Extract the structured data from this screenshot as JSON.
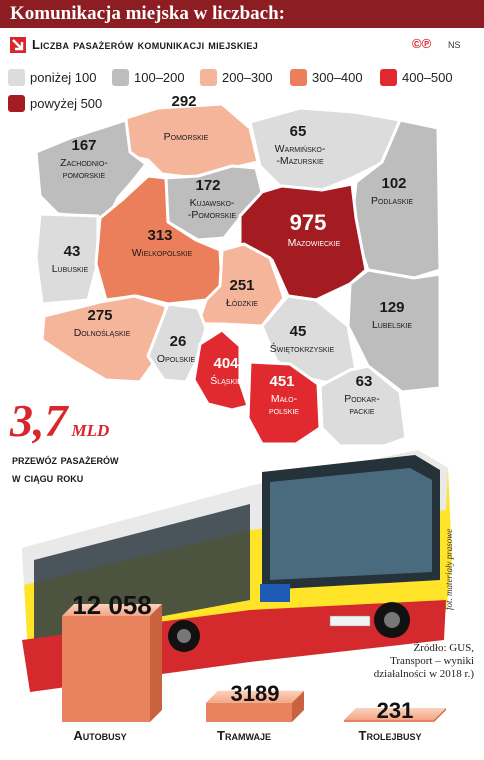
{
  "header": {
    "title": "Komunikacja miejska w liczbach:",
    "subtitle": "Liczba pasażerów komunikacji miejskiej",
    "copyright": "©℗",
    "author": "NS"
  },
  "colors": {
    "title_bg": "#8c1d22",
    "accent": "#d8262c",
    "bins": {
      "below_100": "#dcdcdc",
      "100_200": "#bdbdbd",
      "200_300": "#f5b59a",
      "300_400": "#ec7f5b",
      "400_500": "#e02a30",
      "above_500": "#a51b22"
    }
  },
  "legend": [
    {
      "label": "poniżej 100",
      "color": "#dcdcdc"
    },
    {
      "label": "100–200",
      "color": "#bdbdbd"
    },
    {
      "label": "200–300",
      "color": "#f5b59a"
    },
    {
      "label": "300–400",
      "color": "#ec7f5b"
    },
    {
      "label": "400–500",
      "color": "#e02a30"
    },
    {
      "label": "powyżej 500",
      "color": "#a51b22"
    }
  ],
  "chart_data": [
    {
      "type": "choropleth",
      "regions": [
        {
          "name": "Pomorskie",
          "value": 292
        },
        {
          "name": "Zachodnio-pomorskie",
          "value": 167
        },
        {
          "name": "Warmińsko--Mazurskie",
          "value": 65
        },
        {
          "name": "Kujawsko--Pomorskie",
          "value": 172
        },
        {
          "name": "Podlaskie",
          "value": 102
        },
        {
          "name": "Lubuskie",
          "value": 43
        },
        {
          "name": "Wielkopolskie",
          "value": 313
        },
        {
          "name": "Mazowieckie",
          "value": 975
        },
        {
          "name": "Łódzkie",
          "value": 251
        },
        {
          "name": "Lubelskie",
          "value": 129
        },
        {
          "name": "Dolnośląskie",
          "value": 275
        },
        {
          "name": "Opolskie",
          "value": 26
        },
        {
          "name": "Świętokrzyskie",
          "value": 45
        },
        {
          "name": "Śląskie",
          "value": 404
        },
        {
          "name": "Mało-polskie",
          "value": 451
        },
        {
          "name": "Podkar-packie",
          "value": 63
        }
      ]
    },
    {
      "type": "bar",
      "categories": [
        "Autobusy",
        "Tramwaje",
        "Trolejbusy"
      ],
      "values": [
        12058,
        3189,
        231
      ]
    }
  ],
  "total": {
    "value": "3,7",
    "unit": "mld",
    "caption_line1": "przewóz pasażerów",
    "caption_line2": "w ciągu roku"
  },
  "source": {
    "line1": "Źródło: GUS,",
    "line2": "Transport – wyniki",
    "line3": "działalności w 2018 r.)"
  },
  "photo_credit": "fot. materiały prasowe",
  "bar_labels": [
    "12 058",
    "3189",
    "231"
  ]
}
